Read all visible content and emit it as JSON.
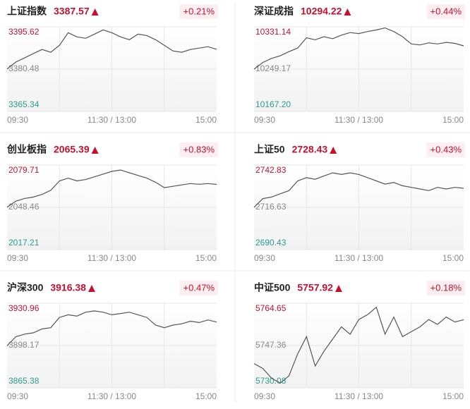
{
  "chart_data": [
    {
      "type": "line",
      "title": "上证指数",
      "price": 3387.57,
      "change": "+0.21%",
      "color": "#555555",
      "ylim": [
        3365.34,
        3395.62
      ],
      "yticks": [
        3365.34,
        3380.48,
        3395.62
      ],
      "ytick_colors": [
        "#2a9d8f",
        "#888888",
        "#c8102e"
      ],
      "x_labels": [
        "09:30",
        "11:30 / 13:00",
        "15:00"
      ],
      "values": [
        3380.5,
        3383.0,
        3384.5,
        3386.0,
        3387.5,
        3386.5,
        3389.0,
        3393.5,
        3392.0,
        3391.5,
        3393.0,
        3394.5,
        3393.5,
        3392.0,
        3391.0,
        3393.0,
        3392.5,
        3391.0,
        3389.0,
        3387.0,
        3386.5,
        3387.5,
        3388.0,
        3388.5,
        3387.57
      ]
    },
    {
      "type": "line",
      "title": "深证成指",
      "price": 10294.22,
      "change": "+0.44%",
      "color": "#555555",
      "ylim": [
        10167.2,
        10331.14
      ],
      "yticks": [
        {
          "value": 10167.2,
          "label": "10167.20"
        },
        10249.17,
        10331.14
      ],
      "ytick_colors": [
        "#2a9d8f",
        "#888888",
        "#c8102e"
      ],
      "x_labels": [
        "09:30",
        "11:30 / 13:00",
        "15:00"
      ],
      "values": [
        10249,
        10262,
        10270,
        10275,
        10283,
        10290,
        10310,
        10306,
        10312,
        10308,
        10315,
        10320,
        10318,
        10322,
        10325,
        10329,
        10322,
        10312,
        10298,
        10296,
        10300,
        10298,
        10301,
        10299,
        10294.22
      ]
    },
    {
      "type": "line",
      "title": "创业板指",
      "price": 2065.39,
      "change": "+0.83%",
      "color": "#555555",
      "ylim": [
        2017.21,
        2079.71
      ],
      "yticks": [
        2017.21,
        2048.46,
        2079.71
      ],
      "ytick_colors": [
        "#2a9d8f",
        "#888888",
        "#c8102e"
      ],
      "x_labels": [
        "09:30",
        "11:30 / 13:00",
        "15:00"
      ],
      "values": [
        2048.5,
        2053,
        2055,
        2056,
        2058,
        2061,
        2068,
        2070,
        2068,
        2069,
        2071,
        2073,
        2075,
        2076,
        2074,
        2072,
        2070,
        2067,
        2063,
        2064,
        2065,
        2066,
        2065.5,
        2066,
        2065.39
      ]
    },
    {
      "type": "line",
      "title": "上证50",
      "price": 2728.43,
      "change": "+0.43%",
      "color": "#555555",
      "ylim": [
        2690.43,
        2742.83
      ],
      "yticks": [
        2690.43,
        2716.63,
        2742.83
      ],
      "ytick_colors": [
        "#2a9d8f",
        "#888888",
        "#c8102e"
      ],
      "x_labels": [
        "09:30",
        "11:30 / 13:00",
        "15:00"
      ],
      "values": [
        2716.6,
        2722,
        2723,
        2725,
        2727,
        2733,
        2735,
        2734,
        2736,
        2738,
        2737,
        2738,
        2737,
        2735,
        2733,
        2731,
        2732,
        2730,
        2729,
        2728,
        2727,
        2729,
        2728,
        2729,
        2728.43
      ]
    },
    {
      "type": "line",
      "title": "沪深300",
      "price": 3916.38,
      "change": "+0.47%",
      "color": "#555555",
      "ylim": [
        3865.38,
        3930.96
      ],
      "yticks": [
        3865.38,
        3898.17,
        3930.96
      ],
      "ytick_colors": [
        "#2a9d8f",
        "#888888",
        "#c8102e"
      ],
      "x_labels": [
        "09:30",
        "11:30 / 13:00",
        "15:00"
      ],
      "values": [
        3898,
        3905,
        3907,
        3908,
        3911,
        3912,
        3920,
        3922,
        3921,
        3924,
        3925,
        3924,
        3922,
        3923,
        3924,
        3922,
        3920,
        3914,
        3912,
        3914,
        3915,
        3917,
        3916,
        3918,
        3916.38
      ]
    },
    {
      "type": "line",
      "title": "中证500",
      "price": 5757.92,
      "change": "+0.18%",
      "color": "#555555",
      "ylim": [
        5730.08,
        5764.65
      ],
      "yticks": [
        5730.08,
        5747.36,
        5764.65
      ],
      "ytick_colors": [
        "#2a9d8f",
        "#888888",
        "#c8102e"
      ],
      "x_labels": [
        "09:30",
        "11:30 / 13:00",
        "15:00"
      ],
      "values": [
        5740,
        5738,
        5734,
        5732,
        5735,
        5744,
        5751,
        5739,
        5745,
        5750,
        5755,
        5752,
        5758,
        5760,
        5763,
        5752,
        5759,
        5751,
        5753,
        5755,
        5758,
        5756,
        5759,
        5757,
        5757.92
      ]
    }
  ]
}
